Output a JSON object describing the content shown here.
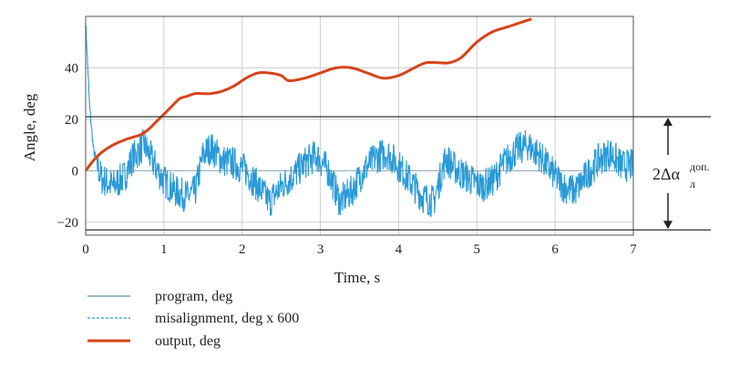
{
  "chart_data": {
    "type": "line",
    "title": "",
    "xlabel": "Time, s",
    "ylabel": "Angle, deg",
    "xlim": [
      0,
      7
    ],
    "ylim": [
      -25,
      60
    ],
    "x_ticks": [
      0,
      1,
      2,
      3,
      4,
      5,
      6,
      7
    ],
    "y_ticks": [
      -20,
      0,
      20,
      40
    ],
    "grid": true,
    "legend_position": "bottom-left",
    "series": [
      {
        "name": "program, deg",
        "color": "#5a8fa8",
        "style": "solid",
        "x": [
          0,
          7
        ],
        "y": [
          0,
          0
        ]
      },
      {
        "name": "misalignment, deg x 600",
        "color": "#2a9ad8",
        "style": "dashed",
        "x": [
          0,
          0.05,
          0.1,
          0.2,
          0.35,
          0.5,
          0.6,
          0.75,
          0.85,
          1.0,
          1.15,
          1.3,
          1.4,
          1.5,
          1.6,
          1.75,
          1.9,
          2.05,
          2.2,
          2.35,
          2.5,
          2.65,
          2.8,
          2.95,
          3.1,
          3.25,
          3.4,
          3.55,
          3.7,
          3.85,
          4.0,
          4.15,
          4.3,
          4.45,
          4.6,
          4.75,
          4.9,
          5.05,
          5.2,
          5.35,
          5.5,
          5.65,
          5.8,
          5.95,
          6.1,
          6.25,
          6.4,
          6.55,
          6.7,
          6.85,
          7.0
        ],
        "y": [
          58,
          25,
          8,
          -3,
          -6,
          -2,
          5,
          10,
          4,
          -4,
          -8,
          -10,
          -8,
          6,
          9,
          4,
          3,
          0,
          -6,
          -12,
          -6,
          -2,
          3,
          6,
          0,
          -12,
          -8,
          0,
          5,
          7,
          2,
          -4,
          -10,
          -12,
          5,
          0,
          -3,
          -6,
          -4,
          3,
          8,
          10,
          6,
          0,
          -6,
          -8,
          -2,
          4,
          7,
          2,
          2
        ]
      },
      {
        "name": "output, deg",
        "color": "#d64419",
        "style": "solid",
        "x": [
          0,
          0.1,
          0.2,
          0.35,
          0.5,
          0.6,
          0.7,
          0.8,
          0.9,
          1.0,
          1.1,
          1.2,
          1.3,
          1.4,
          1.5,
          1.6,
          1.75,
          1.9,
          2.05,
          2.2,
          2.35,
          2.5,
          2.6,
          2.8,
          3.0,
          3.2,
          3.4,
          3.6,
          3.8,
          4.0,
          4.2,
          4.35,
          4.5,
          4.65,
          4.8,
          5.0,
          5.2,
          5.4,
          5.6,
          5.7
        ],
        "y": [
          0,
          4,
          7,
          10,
          12,
          13,
          14,
          16,
          19,
          22,
          25,
          28,
          29,
          30,
          30,
          30,
          31,
          33,
          36,
          38,
          38,
          37,
          35,
          36,
          38,
          40,
          40,
          38,
          36,
          37,
          40,
          42,
          42,
          42,
          44,
          50,
          54,
          56,
          58,
          59
        ]
      }
    ],
    "annotations": [
      {
        "text_main": "2Δα",
        "text_sup": "доп.",
        "text_sub": "л",
        "range": [
          -23,
          21
        ]
      }
    ]
  }
}
